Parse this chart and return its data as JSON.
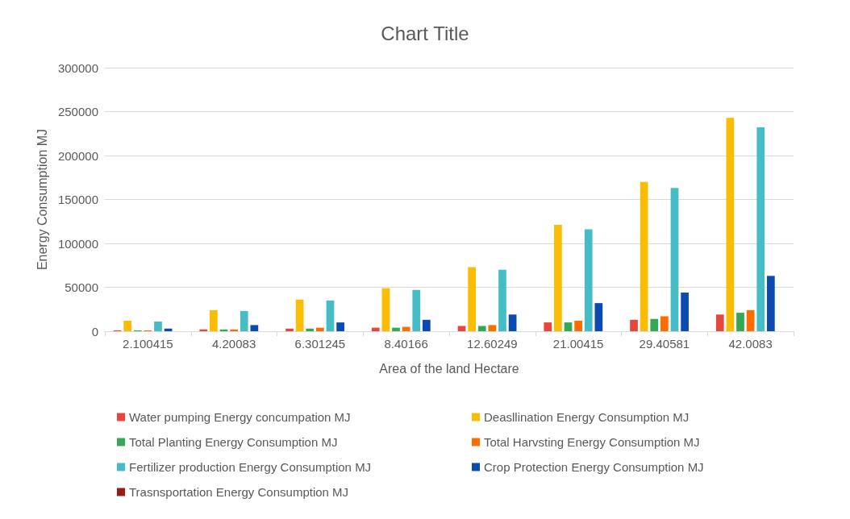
{
  "chart_data": {
    "type": "bar",
    "title": "Chart Title",
    "xlabel": "Area of the land Hectare",
    "ylabel": "Energy Consumption MJ",
    "categories": [
      "2.100415",
      "4.20083",
      "6.301245",
      "8.40166",
      "12.60249",
      "21.00415",
      "29.40581",
      "42.0083"
    ],
    "series": [
      {
        "name": "Water pumping Energy concumpation MJ",
        "color": "#e8453c",
        "values": [
          1000,
          2000,
          3000,
          4000,
          6000,
          10000,
          13000,
          19000
        ]
      },
      {
        "name": "Deasllination Energy Consumption MJ",
        "color": "#fbbc04",
        "values": [
          12000,
          24000,
          36000,
          49000,
          73000,
          121000,
          170000,
          243000
        ]
      },
      {
        "name": "Total Planting Energy Consumption MJ",
        "color": "#34a853",
        "values": [
          1000,
          2000,
          3000,
          4000,
          6000,
          10000,
          14000,
          21000
        ]
      },
      {
        "name": "Total Harvsting Energy Consumption MJ",
        "color": "#ff6d01",
        "values": [
          1000,
          2000,
          4000,
          5000,
          7000,
          12000,
          17000,
          24000
        ]
      },
      {
        "name": "Fertilizer production Energy Consumption MJ",
        "color": "#46bdc6",
        "values": [
          11000,
          23000,
          35000,
          47000,
          70000,
          116000,
          163000,
          232000
        ]
      },
      {
        "name": "Crop Protection Energy Consumption MJ",
        "color": "#0b4bb1",
        "values": [
          3000,
          7000,
          10000,
          13000,
          19000,
          32000,
          44000,
          63000
        ]
      },
      {
        "name": "Trasnsportation Energy Consumption MJ",
        "color": "#9c1b14",
        "values": [
          0,
          0,
          0,
          0,
          0,
          0,
          0,
          0
        ]
      }
    ],
    "ylim": [
      0,
      300000
    ],
    "yticks": [
      0,
      50000,
      100000,
      150000,
      200000,
      250000,
      300000
    ],
    "grid": "y",
    "legend": "bottom"
  }
}
